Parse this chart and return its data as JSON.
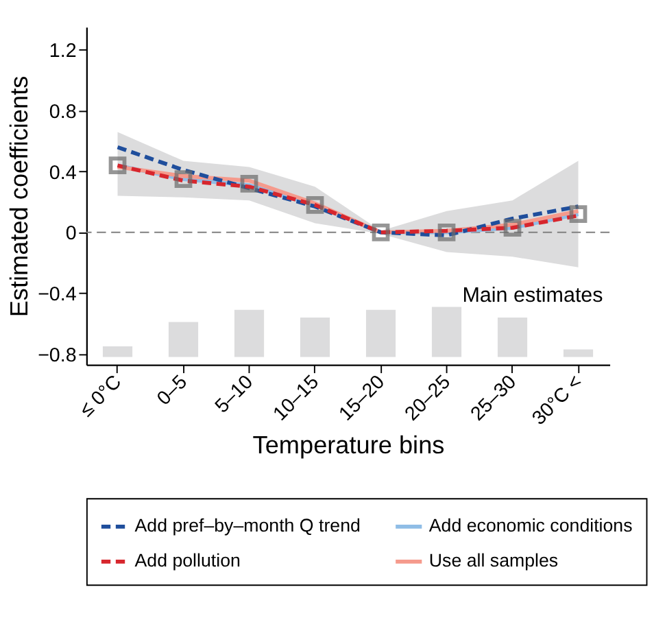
{
  "chart_data": {
    "type": "line",
    "xlabel": "Temperature bins",
    "ylabel": "Estimated coefficients",
    "categories": [
      "≤ 0°C",
      "0–5",
      "5–10",
      "10–15",
      "15–20",
      "20–25",
      "25–30",
      "30°C <"
    ],
    "series": [
      {
        "type": "scatter",
        "color": "#6b6b6b",
        "marker": "square",
        "values": [
          0.44,
          0.35,
          0.32,
          0.18,
          0,
          0,
          0.03,
          0.12
        ],
        "lower": [
          0.24,
          0.23,
          0.21,
          0.06,
          -0.01,
          -0.13,
          -0.16,
          -0.23
        ],
        "upper": [
          0.66,
          0.47,
          0.43,
          0.3,
          0.01,
          0.14,
          0.21,
          0.47
        ]
      },
      {
        "name": "Add pref–by–month Q trend",
        "color": "#1f4e9c",
        "line_style": "dashed",
        "values": [
          0.56,
          0.41,
          0.29,
          0.17,
          0,
          -0.02,
          0.09,
          0.17
        ]
      },
      {
        "name": "Add economic conditions",
        "color": "#8fbde6",
        "line_style": "solid",
        "values": [
          0.44,
          0.35,
          0.31,
          0.18,
          0,
          0,
          0.03,
          0.12
        ]
      },
      {
        "name": "Add pollution",
        "color": "#d7262d",
        "line_style": "dashed",
        "values": [
          0.44,
          0.34,
          0.3,
          0.18,
          0,
          0.01,
          0.03,
          0.11
        ]
      },
      {
        "name": "Use all samples",
        "color": "#f59a8c",
        "line_style": "solid",
        "values": [
          0.43,
          0.37,
          0.34,
          0.19,
          0,
          0.01,
          0.05,
          0.14
        ]
      },
      {
        "type": "bar",
        "color": "#dcdcdd",
        "base": [
          -0.82,
          -0.82,
          -0.82,
          -0.82,
          -0.82,
          -0.82,
          -0.82,
          -0.82
        ],
        "values": [
          0.07,
          0.23,
          0.31,
          0.26,
          0.31,
          0.33,
          0.26,
          0.05
        ]
      }
    ],
    "ylim": [
      -0.87,
      1.35
    ],
    "yticks": [
      {
        "value": -0.8,
        "label": "−0.8"
      },
      {
        "value": -0.4,
        "label": "−0.4"
      },
      0,
      0.4,
      0.8,
      1.2
    ],
    "ref_lines": [
      {
        "axis": "y",
        "value": 0,
        "color": "#808080",
        "line_style": "dashed"
      }
    ],
    "annotations": [
      "Main estimates"
    ],
    "grid": false,
    "legend": "bottom"
  }
}
